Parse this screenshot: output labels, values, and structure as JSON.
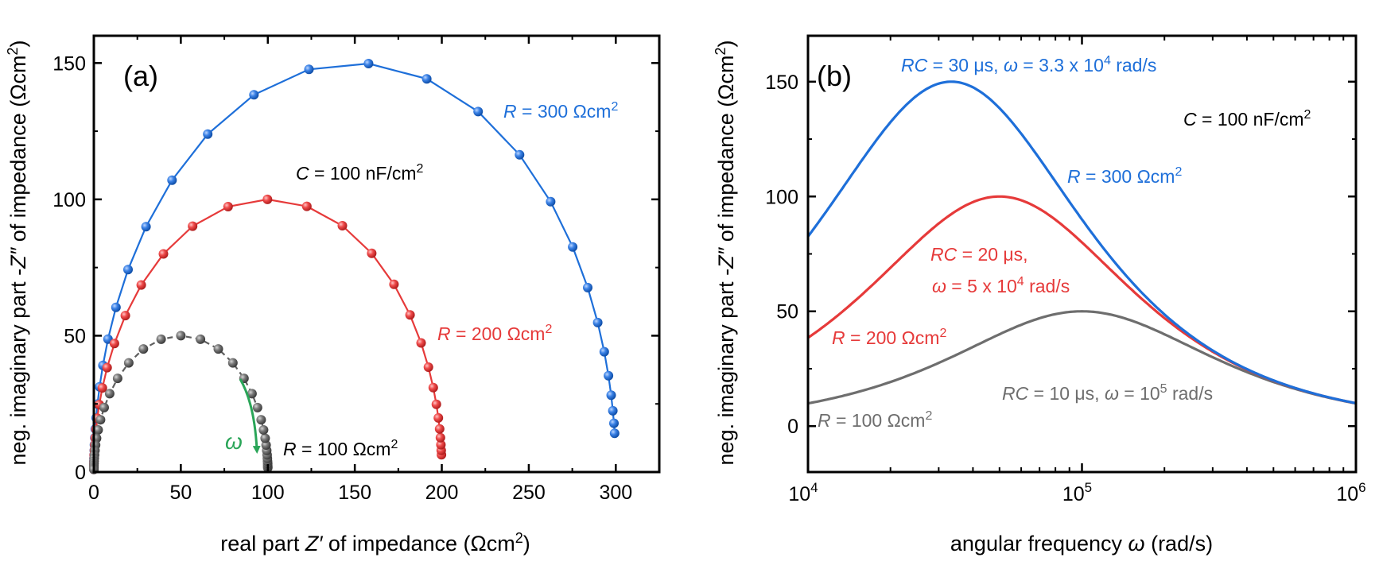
{
  "chart_data": [
    {
      "panel": "(a)",
      "type": "scatter",
      "xlabel": {
        "pre": "real part ",
        "var": "Z′",
        "post": " of impedance (Ωcm",
        "sup": "2",
        "end": ")"
      },
      "ylabel": {
        "pre": "neg. imaginary part -",
        "var": "Z″",
        "post": " of impedance (Ωcm",
        "sup": "2",
        "end": ")"
      },
      "xlim": [
        0,
        325
      ],
      "ylim": [
        0,
        160
      ],
      "xticks": [
        0,
        50,
        100,
        150,
        200,
        250,
        300
      ],
      "yticks": [
        0,
        50,
        100,
        150
      ],
      "omega_symbol": "ω",
      "capacitance_label": {
        "var": "C",
        "text": " = 100 nF/cm",
        "sup": "2"
      },
      "series": [
        {
          "name": "R = 300 Ωcm²",
          "label": {
            "var": "R",
            "text": " = 300 Ωcm",
            "sup": "2"
          },
          "R": 300,
          "color": "#1e6fd9",
          "line_style": "solid"
        },
        {
          "name": "R = 200 Ωcm²",
          "label": {
            "var": "R",
            "text": " = 200 Ωcm",
            "sup": "2"
          },
          "R": 200,
          "color": "#e63a3a",
          "line_style": "solid"
        },
        {
          "name": "R = 100 Ωcm²",
          "label": {
            "var": "R",
            "text": " = 100 Ωcm",
            "sup": "2"
          },
          "R": 100,
          "color": "#5f5f5f",
          "line_style": "dashed"
        }
      ],
      "C_F_per_cm2": 1e-07,
      "log_omega_range": [
        3.2,
        7.0
      ],
      "points_per_series": 39
    },
    {
      "panel": "(b)",
      "type": "line",
      "xlabel": {
        "pre": "angular frequency ",
        "var": "ω",
        "post": " (rad/s)"
      },
      "ylabel": {
        "pre": "neg. imaginary part -",
        "var": "Z″",
        "post": " of impedance (Ωcm",
        "sup": "2",
        "end": ")"
      },
      "x_scale": "log",
      "xlim": [
        10000,
        1000000
      ],
      "ylim": [
        -20,
        170
      ],
      "xticks": [
        {
          "value": 10000,
          "base": "10",
          "exp": "4"
        },
        {
          "value": 100000,
          "base": "10",
          "exp": "5"
        },
        {
          "value": 1000000,
          "base": "10",
          "exp": "6"
        }
      ],
      "yticks": [
        0,
        50,
        100,
        150
      ],
      "capacitance_label": {
        "var": "C",
        "text": " = 100 nF/cm",
        "sup": "2"
      },
      "series": [
        {
          "name": "R = 300 Ωcm²",
          "R": 300,
          "color": "#1e6fd9",
          "label": {
            "var": "R",
            "text": " = 300 Ωcm",
            "sup": "2"
          },
          "peak_label": {
            "a": "RC",
            "b": " = 30 μs, ",
            "c": "ω",
            "d": " = 3.3 x 10",
            "sup": "4",
            "e": " rad/s"
          },
          "peak": {
            "omega": 33333,
            "value": 150
          }
        },
        {
          "name": "R = 200 Ωcm²",
          "R": 200,
          "color": "#e63a3a",
          "label": {
            "var": "R",
            "text": " = 200 Ωcm",
            "sup": "2"
          },
          "peak_label_1": {
            "a": "RC",
            "b": " = 20 μs,"
          },
          "peak_label_2": {
            "c": "ω",
            "d": " = 5 x 10",
            "sup": "4",
            "e": " rad/s"
          },
          "peak": {
            "omega": 50000,
            "value": 100
          }
        },
        {
          "name": "R = 100 Ωcm²",
          "R": 100,
          "color": "#6e6e6e",
          "label": {
            "var": "R",
            "text": " = 100 Ωcm",
            "sup": "2"
          },
          "peak_label": {
            "a": "RC",
            "b": " = 10 μs, ",
            "c": "ω",
            "d": " = 10",
            "sup": "5",
            "e": " rad/s"
          },
          "peak": {
            "omega": 100000,
            "value": 50
          }
        }
      ],
      "C_F_per_cm2": 1e-07
    }
  ]
}
